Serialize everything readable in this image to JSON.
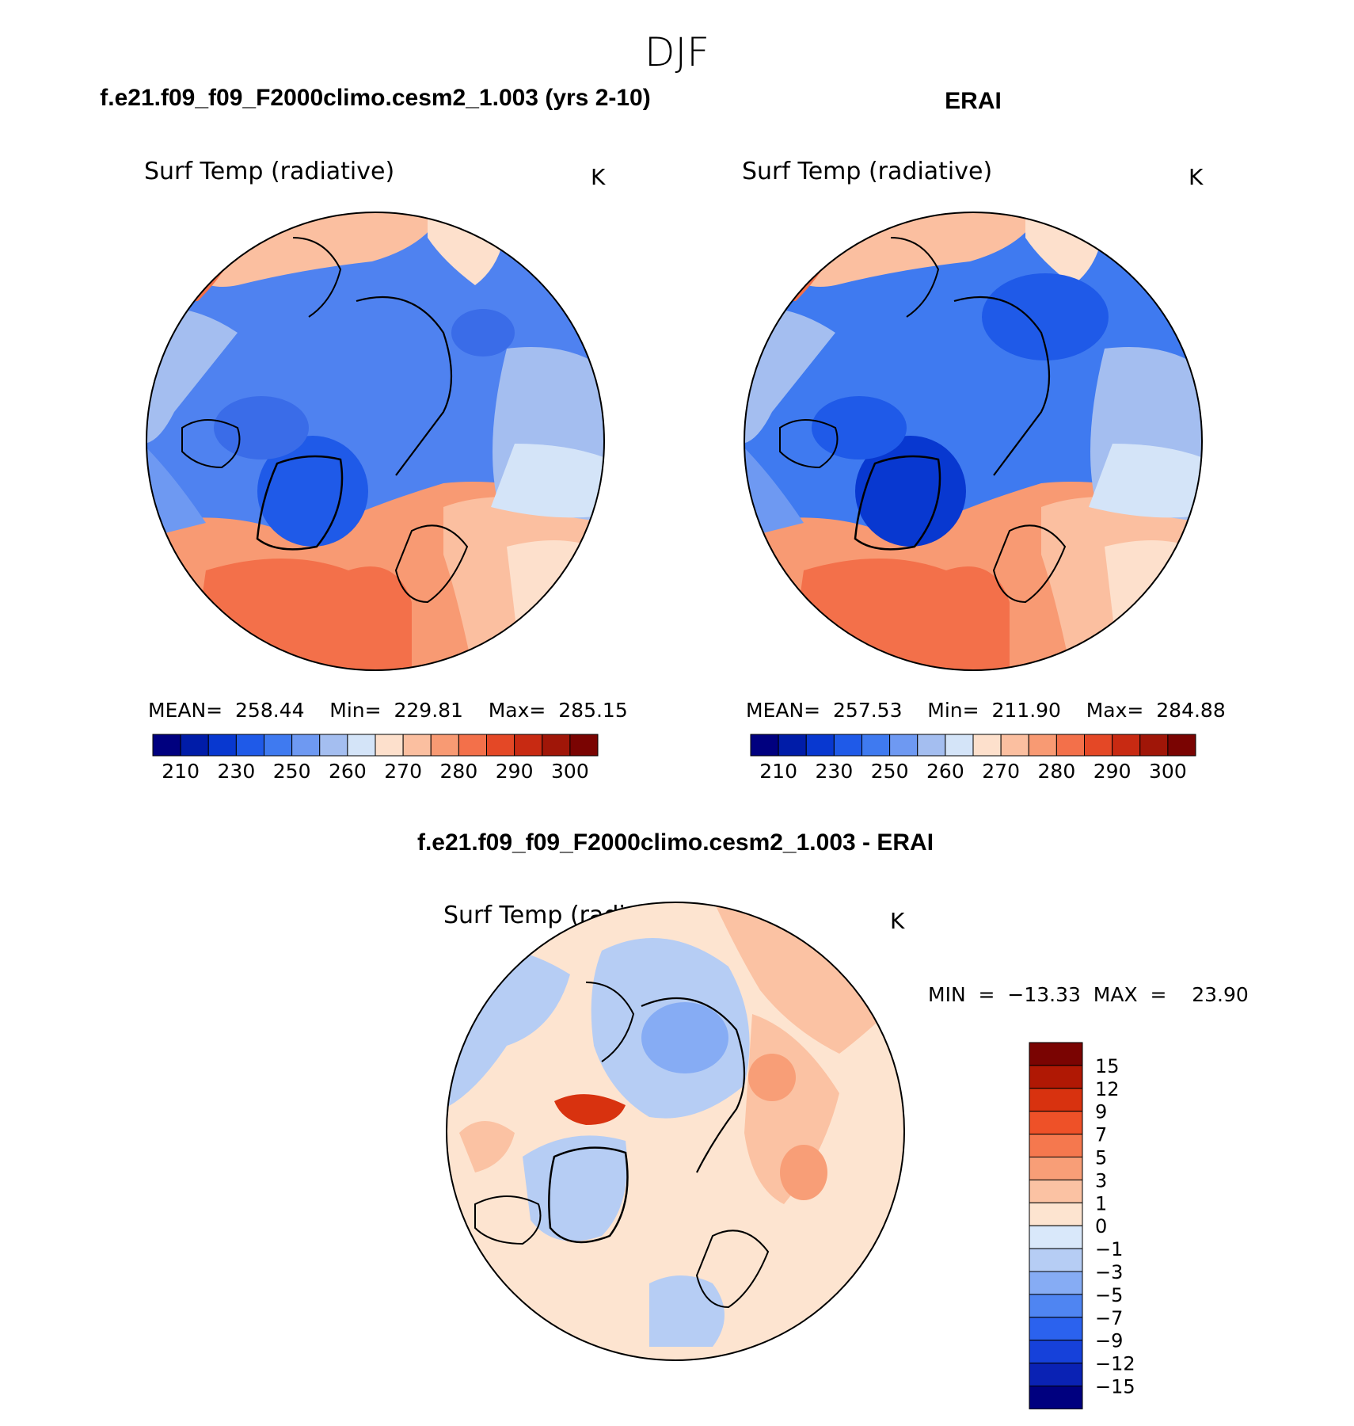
{
  "figure": {
    "season": "DJF"
  },
  "colors": {
    "abs_scale": [
      "#00007f",
      "#001ca8",
      "#0838d0",
      "#1f5ae8",
      "#3f7af0",
      "#6e99f2",
      "#a4bef0",
      "#d4e4f8",
      "#fde0cc",
      "#fbbfa0",
      "#f89a73",
      "#f3704a",
      "#e44826",
      "#c82a12",
      "#a01608",
      "#7a0402"
    ],
    "diff_scale": [
      "#00007f",
      "#0a22b4",
      "#1641da",
      "#2b62ee",
      "#4f85f2",
      "#86acf4",
      "#b6cdf4",
      "#d9e8fa",
      "#fde4d0",
      "#fbc2a3",
      "#f89e77",
      "#f5784e",
      "#ee5128",
      "#d8320f",
      "#b01804",
      "#7a0402"
    ]
  },
  "panels": {
    "model": {
      "header": "f.e21.f09_f09_F2000climo.cesm2_1.003 (yrs 2-10)",
      "variable": "Surf Temp (radiative)",
      "units": "K",
      "stats": "MEAN=  258.44    Min=  229.81    Max=  285.15"
    },
    "obs": {
      "header": "ERAI",
      "variable": "Surf Temp (radiative)",
      "units": "K",
      "stats": "MEAN=  257.53    Min=  211.90    Max=  284.88"
    },
    "diff": {
      "header": "f.e21.f09_f09_F2000climo.cesm2_1.003 - ERAI",
      "variable": "Surf Temp (radiative)",
      "units": "K",
      "stats": "MIN  =  −13.33  MAX  =    23.90"
    }
  },
  "chart_data": [
    {
      "type": "heatmap",
      "title": "Surf Temp (radiative)",
      "dataset": "f.e21.f09_f09_F2000climo.cesm2_1.003 (yrs 2-10)",
      "units": "K",
      "mean": 258.44,
      "min": 229.81,
      "max": 285.15,
      "contour_levels": [
        210,
        220,
        230,
        240,
        250,
        255,
        260,
        265,
        270,
        275,
        280,
        285,
        290,
        295,
        300
      ],
      "colorbar_tick_labels": [
        "210",
        "230",
        "250",
        "260",
        "270",
        "280",
        "290",
        "300"
      ]
    },
    {
      "type": "heatmap",
      "title": "Surf Temp (radiative)",
      "dataset": "ERAI",
      "units": "K",
      "mean": 257.53,
      "min": 211.9,
      "max": 284.88,
      "contour_levels": [
        210,
        220,
        230,
        240,
        250,
        255,
        260,
        265,
        270,
        275,
        280,
        285,
        290,
        295,
        300
      ],
      "colorbar_tick_labels": [
        "210",
        "230",
        "250",
        "260",
        "270",
        "280",
        "290",
        "300"
      ]
    },
    {
      "type": "heatmap",
      "title": "Surf Temp (radiative)",
      "dataset": "f.e21.f09_f09_F2000climo.cesm2_1.003 - ERAI",
      "units": "K",
      "min": -13.33,
      "max": 23.9,
      "contour_levels": [
        -15,
        -12,
        -9,
        -7,
        -5,
        -3,
        -1,
        0,
        1,
        3,
        5,
        7,
        9,
        12,
        15
      ],
      "colorbar_tick_labels": [
        "15",
        "12",
        "9",
        "7",
        "5",
        "3",
        "1",
        "0",
        "−1",
        "−3",
        "−5",
        "−7",
        "−9",
        "−12",
        "−15"
      ]
    }
  ]
}
